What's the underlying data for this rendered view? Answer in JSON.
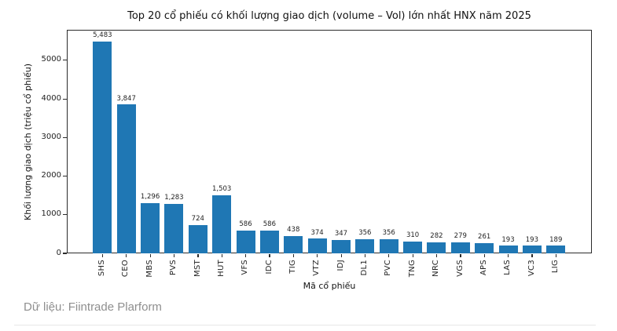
{
  "chart_data": {
    "type": "bar",
    "title": "Top 20 cổ phiếu có khối lượng giao dịch (volume – Vol) lớn nhất HNX năm 2025",
    "xlabel": "Mã cổ phiếu",
    "ylabel": "Khối lượng giao dịch (triệu cổ phiếu)",
    "categories": [
      "SHS",
      "CEO",
      "MBS",
      "PVS",
      "MST",
      "HUT",
      "VFS",
      "IDC",
      "TIG",
      "VTZ",
      "IDJ",
      "DL1",
      "PVC",
      "TNG",
      "NRC",
      "VGS",
      "APS",
      "LAS",
      "VC3",
      "LIG"
    ],
    "values": [
      5483,
      3847,
      1296,
      1283,
      724,
      1503,
      586,
      586,
      438,
      374,
      347,
      356,
      356,
      310,
      282,
      279,
      261,
      193,
      193,
      189
    ],
    "value_labels": [
      "5,483",
      "3,847",
      "1,296",
      "1,283",
      "724",
      "1,503",
      "586",
      "586",
      "438",
      "374",
      "347",
      "356",
      "356",
      "310",
      "282",
      "279",
      "261",
      "193",
      "193",
      "189"
    ],
    "yticks": [
      0,
      1000,
      2000,
      3000,
      4000,
      5000
    ],
    "ylim": [
      0,
      5790
    ],
    "bar_color": "#1f77b4",
    "grid": false,
    "legend_position": "none"
  },
  "footer": {
    "source": "Dữ liệu: Fiintrade Plarform"
  }
}
